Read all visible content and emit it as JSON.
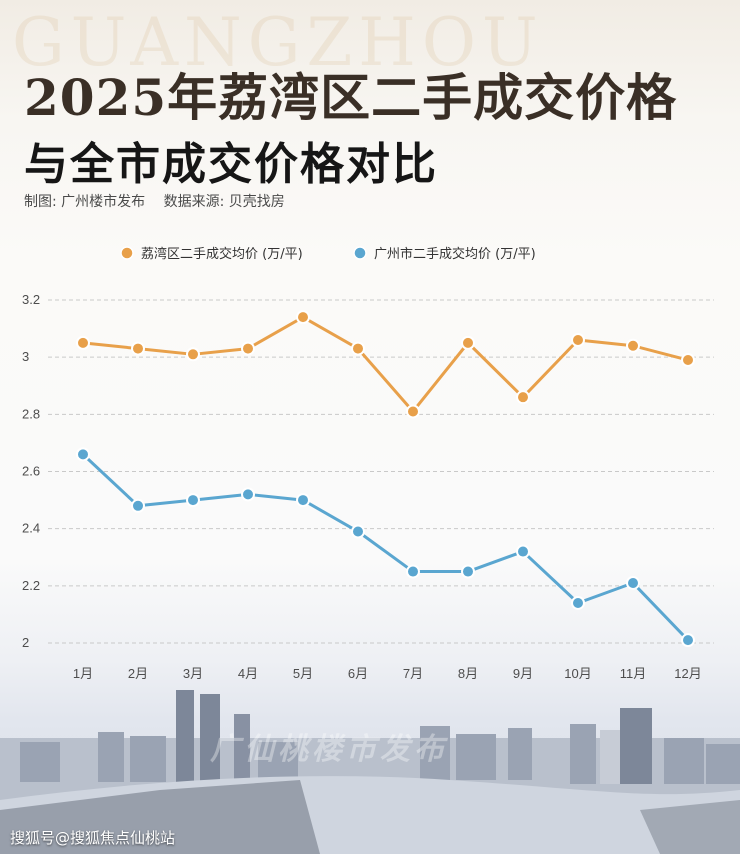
{
  "watermark": "GUANGZHOU",
  "header": {
    "title": "2025年荔湾区二手成交价格",
    "subtitle": "与全市成交价格对比",
    "credit": "制图: 广州楼市发布",
    "source": "数据来源: 贝壳找房"
  },
  "footer": {
    "brand": "搜狐号@搜狐焦点仙桃站",
    "overlay": "广仙桃楼市发布"
  },
  "colors": {
    "liwan": "#e8a04a",
    "guangzhou": "#5aa6d0"
  },
  "chart_data": {
    "type": "line",
    "categories": [
      "1月",
      "2月",
      "3月",
      "4月",
      "5月",
      "6月",
      "7月",
      "8月",
      "9月",
      "10月",
      "11月",
      "12月"
    ],
    "series": [
      {
        "name": "荔湾区二手成交均价 (万/平)",
        "values": [
          3.05,
          3.03,
          3.01,
          3.03,
          3.14,
          3.03,
          2.81,
          3.05,
          2.86,
          3.06,
          3.04,
          2.99
        ]
      },
      {
        "name": "广州市二手成交均价 (万/平)",
        "values": [
          2.66,
          2.48,
          2.5,
          2.52,
          2.5,
          2.39,
          2.25,
          2.25,
          2.32,
          2.14,
          2.21,
          2.01
        ]
      }
    ],
    "yticks": [
      "2",
      "2.2",
      "2.4",
      "2.6",
      "2.8",
      "3",
      "3.2"
    ],
    "ylim": [
      2,
      3.2
    ],
    "grid": true,
    "legend": "top"
  }
}
